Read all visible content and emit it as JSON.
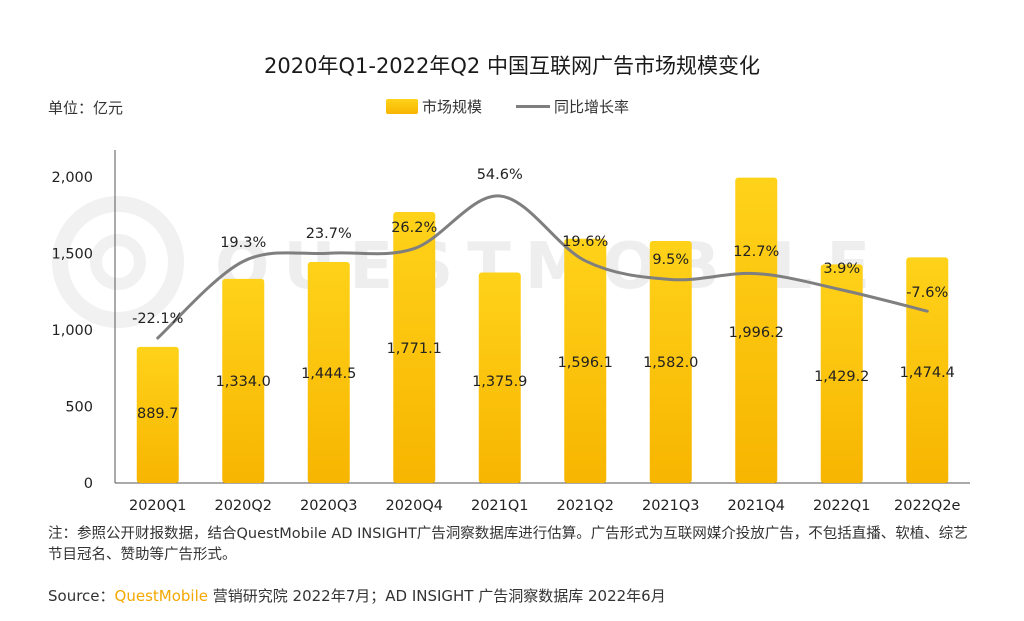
{
  "title": "2020年Q1-2022年Q2 中国互联网广告市场规模变化",
  "unit_label": "单位：亿元",
  "legend": {
    "bar_label": "市场规模",
    "line_label": "同比增长率"
  },
  "note": "注：参照公开财报数据，结合QuestMobile AD INSIGHT广告洞察数据库进行估算。广告形式为互联网媒介投放广告，不包括直播、软植、综艺节目冠名、赞助等广告形式。",
  "source": {
    "prefix": "Source：",
    "brand": "QuestMobile",
    "rest": " 营销研究院 2022年7月；AD INSIGHT 广告洞察数据库 2022年6月"
  },
  "watermark": "QUESTMOBILE",
  "colors": {
    "bar_top": "#ffd21a",
    "bar_bottom": "#f7b500",
    "line": "#7f7f7f",
    "axis": "#555555",
    "brand": "#f5a800"
  },
  "chart_data": {
    "type": "bar",
    "categories": [
      "2020Q1",
      "2020Q2",
      "2020Q3",
      "2020Q4",
      "2021Q1",
      "2021Q2",
      "2021Q3",
      "2021Q4",
      "2022Q1",
      "2022Q2e"
    ],
    "series": [
      {
        "name": "市场规模",
        "type": "bar",
        "values": [
          889.7,
          1334.0,
          1444.5,
          1771.1,
          1375.9,
          1596.1,
          1582.0,
          1996.2,
          1429.2,
          1474.4
        ],
        "labels": [
          "889.7",
          "1,334.0",
          "1,444.5",
          "1,771.1",
          "1,375.9",
          "1,596.1",
          "1,582.0",
          "1,996.2",
          "1,429.2",
          "1,474.4"
        ]
      },
      {
        "name": "同比增长率",
        "type": "line",
        "values": [
          -22.1,
          19.3,
          23.7,
          26.2,
          54.6,
          19.6,
          9.5,
          12.7,
          3.9,
          -7.6
        ],
        "labels": [
          "-22.1%",
          "19.3%",
          "23.7%",
          "26.2%",
          "54.6%",
          "19.6%",
          "9.5%",
          "12.7%",
          "3.9%",
          "-7.6%"
        ]
      }
    ],
    "ylim": [
      0,
      2000
    ],
    "yticks": [
      0,
      500,
      1000,
      1500,
      2000
    ],
    "ytick_labels": [
      "0",
      "500",
      "1,000",
      "1,500",
      "2,000"
    ],
    "legend_position": "top-center",
    "grid": false
  }
}
